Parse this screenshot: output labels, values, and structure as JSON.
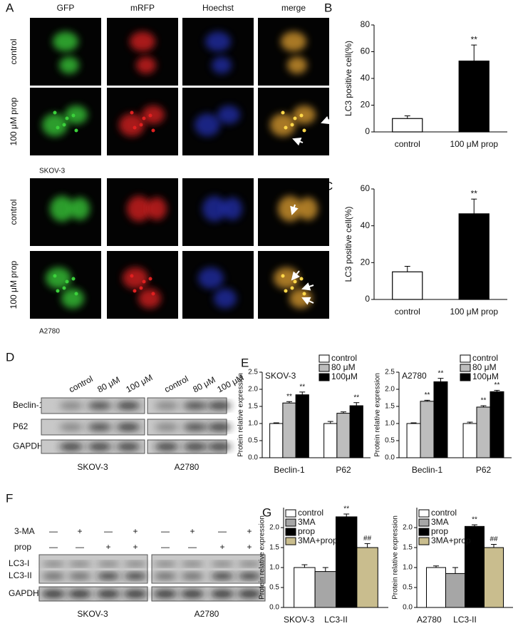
{
  "panel_labels": [
    "A",
    "B",
    "C",
    "D",
    "E",
    "F",
    "G"
  ],
  "microscopy": {
    "columns": [
      "GFP",
      "mRFP",
      "Hoechst",
      "merge"
    ],
    "rows": [
      "control",
      "100 μM prop",
      "control",
      "100 μM prop"
    ],
    "cell_lines": [
      "SKOV-3",
      "A2780"
    ]
  },
  "blot_d": {
    "lanes": [
      "control",
      "80 μM",
      "100 μM",
      "control",
      "80 μM",
      "100 μM"
    ],
    "proteins": [
      "Beclin-1",
      "P62",
      "GAPDH"
    ],
    "cell_lines": [
      "SKOV-3",
      "A2780"
    ]
  },
  "blot_f": {
    "treatments": [
      {
        "name": "3-MA",
        "lanes": [
          "—",
          "+",
          "—",
          "+",
          "—",
          "+",
          "—",
          "+"
        ]
      },
      {
        "name": "prop",
        "lanes": [
          "—",
          "—",
          "+",
          "+",
          "—",
          "—",
          "+",
          "+"
        ]
      }
    ],
    "proteins": [
      "LC3-I",
      "LC3-II",
      "GAPDH"
    ],
    "cell_lines": [
      "SKOV-3",
      "A2780"
    ]
  },
  "chart_data": [
    {
      "type": "bar",
      "ylabel": "LC3 positive cell(%)",
      "categories": [
        "control",
        "100 μM prop"
      ],
      "values": [
        10,
        53
      ],
      "errors": [
        2,
        12
      ],
      "annotations": [
        null,
        "**"
      ],
      "colors": [
        "#ffffff",
        "#000000"
      ],
      "ylim": [
        0,
        80
      ],
      "yticks": [
        0,
        20,
        40,
        60,
        80
      ]
    },
    {
      "type": "bar",
      "ylabel": "LC3 positive cell(%)",
      "categories": [
        "control",
        "100 μM prop"
      ],
      "values": [
        15,
        46.5
      ],
      "errors": [
        3,
        8
      ],
      "annotations": [
        null,
        "**"
      ],
      "colors": [
        "#ffffff",
        "#000000"
      ],
      "ylim": [
        0,
        60
      ],
      "yticks": [
        0,
        20,
        40,
        60
      ]
    },
    {
      "type": "grouped_bar",
      "title": "SKOV-3",
      "ylabel": "Protein relative expression",
      "categories": [
        "Beclin-1",
        "P62"
      ],
      "legend": "top-right",
      "series": [
        {
          "name": "control",
          "color": "#ffffff",
          "values": [
            1,
            1
          ],
          "errors": [
            0.02,
            0.06
          ]
        },
        {
          "name": "80 μM",
          "color": "#bdbdbd",
          "values": [
            1.6,
            1.3
          ],
          "errors": [
            0.04,
            0.04
          ],
          "annotations": [
            "**",
            null
          ]
        },
        {
          "name": "100μM",
          "color": "#000000",
          "values": [
            1.84,
            1.52
          ],
          "errors": [
            0.08,
            0.09
          ],
          "annotations": [
            "**",
            "**"
          ]
        }
      ],
      "ylim": [
        0,
        2.5
      ],
      "yticks": [
        {
          "value": 0,
          "label": "0.0"
        },
        {
          "value": 0.5,
          "label": "0.5"
        },
        {
          "value": 1,
          "label": "1.0"
        },
        {
          "value": 1.5,
          "label": "1.5"
        },
        {
          "value": 2,
          "label": "2.0"
        },
        {
          "value": 2.5,
          "label": "2.5"
        }
      ]
    },
    {
      "type": "grouped_bar",
      "title": "A2780",
      "ylabel": "Protein relative expression",
      "categories": [
        "Beclin-1",
        "P62"
      ],
      "legend": "top-right",
      "series": [
        {
          "name": "control",
          "color": "#ffffff",
          "values": [
            1,
            1
          ],
          "errors": [
            0.02,
            0.04
          ]
        },
        {
          "name": "80 μM",
          "color": "#bdbdbd",
          "values": [
            1.65,
            1.48
          ],
          "errors": [
            0.03,
            0.04
          ],
          "annotations": [
            "**",
            "**"
          ]
        },
        {
          "name": "100μM",
          "color": "#000000",
          "values": [
            2.22,
            1.93
          ],
          "errors": [
            0.1,
            0.04
          ],
          "annotations": [
            "**",
            "**"
          ]
        }
      ],
      "ylim": [
        0,
        2.5
      ],
      "yticks": [
        {
          "value": 0,
          "label": "0.0"
        },
        {
          "value": 0.5,
          "label": "0.5"
        },
        {
          "value": 1,
          "label": "1.0"
        },
        {
          "value": 1.5,
          "label": "1.5"
        },
        {
          "value": 2,
          "label": "2.0"
        },
        {
          "value": 2.5,
          "label": "2.5"
        }
      ]
    },
    {
      "type": "grouped_bar",
      "title": "SKOV-3",
      "ylabel": "Protein relative expression",
      "categories": [
        "LC3-II"
      ],
      "legend": "top-left",
      "series": [
        {
          "name": "control",
          "color": "#ffffff",
          "values": [
            1
          ],
          "errors": [
            0.07
          ]
        },
        {
          "name": "3MA",
          "color": "#a6a6a6",
          "values": [
            0.9
          ],
          "errors": [
            0.1
          ]
        },
        {
          "name": "prop",
          "color": "#000000",
          "values": [
            2.27
          ],
          "errors": [
            0.07
          ],
          "annotations": [
            "**"
          ]
        },
        {
          "name": "3MA+prop",
          "color": "#c9bd8e",
          "values": [
            1.5
          ],
          "errors": [
            0.1
          ],
          "annotations": [
            "##"
          ]
        }
      ],
      "ylim": [
        0,
        2.5
      ],
      "yticks": [
        {
          "value": 0,
          "label": "0.0"
        },
        {
          "value": 0.5,
          "label": "0.5"
        },
        {
          "value": 1,
          "label": "1.0"
        },
        {
          "value": 1.5,
          "label": "1.5"
        },
        {
          "value": 2,
          "label": "2.0"
        }
      ]
    },
    {
      "type": "grouped_bar",
      "title": "A2780",
      "ylabel": "Protein relative expression",
      "categories": [
        "LC3-II"
      ],
      "legend": "top-left",
      "series": [
        {
          "name": "control",
          "color": "#ffffff",
          "values": [
            1
          ],
          "errors": [
            0.04
          ]
        },
        {
          "name": "3MA",
          "color": "#a6a6a6",
          "values": [
            0.85
          ],
          "errors": [
            0.15
          ]
        },
        {
          "name": "prop",
          "color": "#000000",
          "values": [
            2.03
          ],
          "errors": [
            0.04
          ],
          "annotations": [
            "**"
          ]
        },
        {
          "name": "3MA+prop",
          "color": "#c9bd8e",
          "values": [
            1.5
          ],
          "errors": [
            0.08
          ],
          "annotations": [
            "##"
          ]
        }
      ],
      "ylim": [
        0,
        2.5
      ],
      "yticks": [
        {
          "value": 0,
          "label": "0.0"
        },
        {
          "value": 0.5,
          "label": "0.5"
        },
        {
          "value": 1,
          "label": "1.0"
        },
        {
          "value": 1.5,
          "label": "1.5"
        },
        {
          "value": 2,
          "label": "2.0"
        }
      ]
    }
  ]
}
